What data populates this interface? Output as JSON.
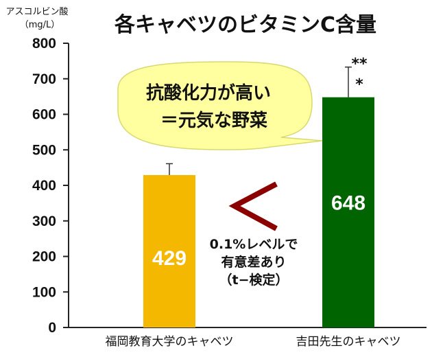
{
  "chart_data": {
    "type": "bar",
    "title": "各キャベツのビタミンC含量",
    "ylabel": [
      "アスコルビン酸",
      "（mg/L）"
    ],
    "xlabel": "",
    "ylim": [
      0,
      800
    ],
    "yticks": [
      0,
      100,
      200,
      300,
      400,
      500,
      600,
      700,
      800
    ],
    "categories": [
      "福岡教育大学のキャベツ",
      "吉田先生のキャベツ"
    ],
    "values": [
      429,
      648
    ],
    "value_labels": [
      "429",
      "648"
    ],
    "error_upper": [
      461,
      733
    ],
    "bar_colors": [
      "#F5B800",
      "#006400"
    ],
    "grid": false,
    "legend": "none",
    "annotations": {
      "bubble_lines": [
        "抗酸化力が高い",
        "＝元気な野菜"
      ],
      "comparison_symbol": "＜",
      "note_lines": [
        "0.1%レベルで",
        "有意差あり",
        "（t−検定）"
      ],
      "significance_marks": [
        "**",
        "*"
      ]
    }
  },
  "colors": {
    "bubble_fill": "#FFFFA0",
    "bubble_stroke": "#D8D870",
    "comparison_color": "#8B0000"
  }
}
